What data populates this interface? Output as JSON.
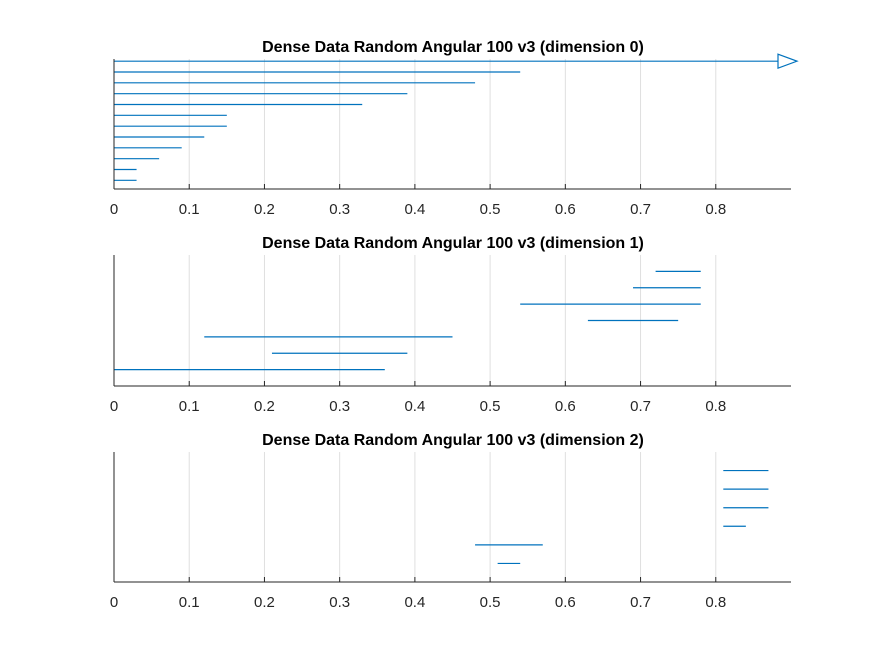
{
  "chart_data": [
    {
      "type": "interval",
      "title": "Dense Data Random Angular  100 v3 (dimension 0)",
      "xlabel": "",
      "ylabel": "",
      "xlim": [
        0,
        0.9
      ],
      "xticks": [
        "0",
        "0.1",
        "0.2",
        "0.3",
        "0.4",
        "0.5",
        "0.6",
        "0.7",
        "0.8"
      ],
      "grid": "vertical",
      "ylim": [
        0,
        12
      ],
      "segments": [
        {
          "y": 11.8,
          "start": 0,
          "end": 0.9,
          "arrow": true
        },
        {
          "y": 10.8,
          "start": 0,
          "end": 0.54
        },
        {
          "y": 9.8,
          "start": 0,
          "end": 0.48
        },
        {
          "y": 8.8,
          "start": 0,
          "end": 0.39
        },
        {
          "y": 7.8,
          "start": 0,
          "end": 0.33
        },
        {
          "y": 6.8,
          "start": 0,
          "end": 0.15
        },
        {
          "y": 5.8,
          "start": 0,
          "end": 0.15
        },
        {
          "y": 4.8,
          "start": 0,
          "end": 0.12
        },
        {
          "y": 3.8,
          "start": 0,
          "end": 0.09
        },
        {
          "y": 2.8,
          "start": 0,
          "end": 0.06
        },
        {
          "y": 1.8,
          "start": 0,
          "end": 0.03
        },
        {
          "y": 0.8,
          "start": 0,
          "end": 0.03
        }
      ]
    },
    {
      "type": "interval",
      "title": "Dense Data Random Angular  100 v3 (dimension 1)",
      "xlabel": "",
      "ylabel": "",
      "xlim": [
        0,
        0.9
      ],
      "xticks": [
        "0",
        "0.1",
        "0.2",
        "0.3",
        "0.4",
        "0.5",
        "0.6",
        "0.7",
        "0.8"
      ],
      "grid": "vertical",
      "ylim": [
        0,
        8
      ],
      "segments": [
        {
          "y": 7,
          "start": 0.72,
          "end": 0.78
        },
        {
          "y": 6,
          "start": 0.69,
          "end": 0.78
        },
        {
          "y": 5,
          "start": 0.54,
          "end": 0.78
        },
        {
          "y": 4,
          "start": 0.63,
          "end": 0.75
        },
        {
          "y": 3,
          "start": 0.12,
          "end": 0.45
        },
        {
          "y": 2,
          "start": 0.21,
          "end": 0.39
        },
        {
          "y": 1,
          "start": 0,
          "end": 0.36
        }
      ]
    },
    {
      "type": "interval",
      "title": "Dense Data Random Angular  100 v3 (dimension 2)",
      "xlabel": "",
      "ylabel": "",
      "xlim": [
        0,
        0.9
      ],
      "xticks": [
        "0",
        "0.1",
        "0.2",
        "0.3",
        "0.4",
        "0.5",
        "0.6",
        "0.7",
        "0.8"
      ],
      "grid": "vertical",
      "ylim": [
        0,
        7
      ],
      "segments": [
        {
          "y": 6,
          "start": 0.81,
          "end": 0.87
        },
        {
          "y": 5,
          "start": 0.81,
          "end": 0.87
        },
        {
          "y": 4,
          "start": 0.81,
          "end": 0.87
        },
        {
          "y": 3,
          "start": 0.81,
          "end": 0.84
        },
        {
          "y": 2,
          "start": 0.48,
          "end": 0.57
        },
        {
          "y": 1,
          "start": 0.51,
          "end": 0.54
        }
      ]
    }
  ],
  "colors": {
    "series": "#0072bd",
    "axis": "#262626",
    "grid": "#dfdfdf",
    "background": "#ffffff"
  }
}
